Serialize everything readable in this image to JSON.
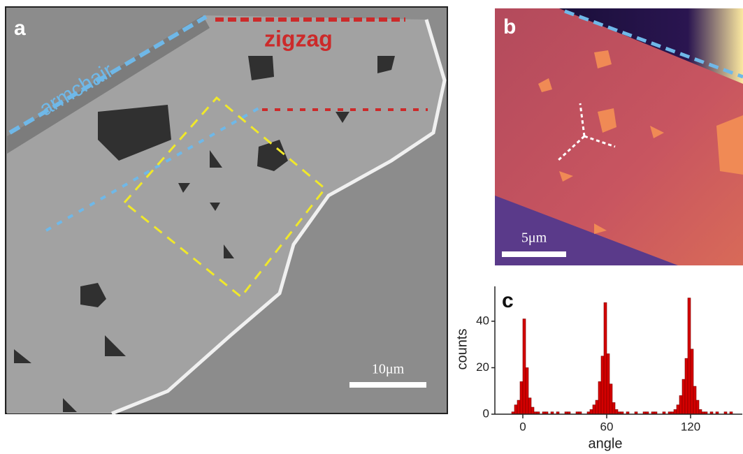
{
  "panels": {
    "a": {
      "label": "a",
      "armchair": "armchair",
      "zigzag": "zigzag",
      "scale": "10μm"
    },
    "b": {
      "label": "b",
      "scale": "5μm"
    }
  },
  "chart_data": {
    "type": "histogram",
    "label": "c",
    "x_label": "angle",
    "y_label": "counts",
    "color": "#d40000",
    "bins": [
      -10,
      -8,
      -6,
      -4,
      -2,
      0,
      2,
      4,
      6,
      8,
      10,
      12,
      14,
      16,
      18,
      20,
      22,
      24,
      26,
      28,
      30,
      32,
      34,
      36,
      38,
      40,
      42,
      44,
      46,
      48,
      50,
      52,
      54,
      56,
      58,
      60,
      62,
      64,
      66,
      68,
      70,
      72,
      74,
      76,
      78,
      80,
      82,
      84,
      86,
      88,
      90,
      92,
      94,
      96,
      98,
      100,
      102,
      104,
      106,
      108,
      110,
      112,
      114,
      116,
      118,
      120,
      122,
      124,
      126,
      128,
      130,
      132,
      134,
      136,
      138,
      140,
      142,
      144,
      146,
      148,
      150
    ],
    "values": [
      0,
      1,
      4,
      6,
      14,
      41,
      20,
      7,
      3,
      1,
      1,
      0,
      1,
      1,
      0,
      1,
      0,
      1,
      0,
      0,
      1,
      1,
      0,
      0,
      1,
      1,
      0,
      0,
      1,
      2,
      4,
      6,
      14,
      25,
      48,
      26,
      13,
      5,
      2,
      1,
      1,
      0,
      1,
      0,
      0,
      1,
      0,
      0,
      1,
      1,
      0,
      1,
      1,
      0,
      0,
      1,
      0,
      1,
      1,
      2,
      4,
      8,
      15,
      24,
      50,
      28,
      12,
      6,
      2,
      1,
      1,
      0,
      1,
      0,
      1,
      0,
      0,
      1,
      0,
      1
    ],
    "xlim": [
      -20,
      157
    ],
    "ylim": [
      0,
      55
    ],
    "xticks": [
      0,
      60,
      120
    ],
    "yticks": [
      0,
      20,
      40
    ]
  }
}
